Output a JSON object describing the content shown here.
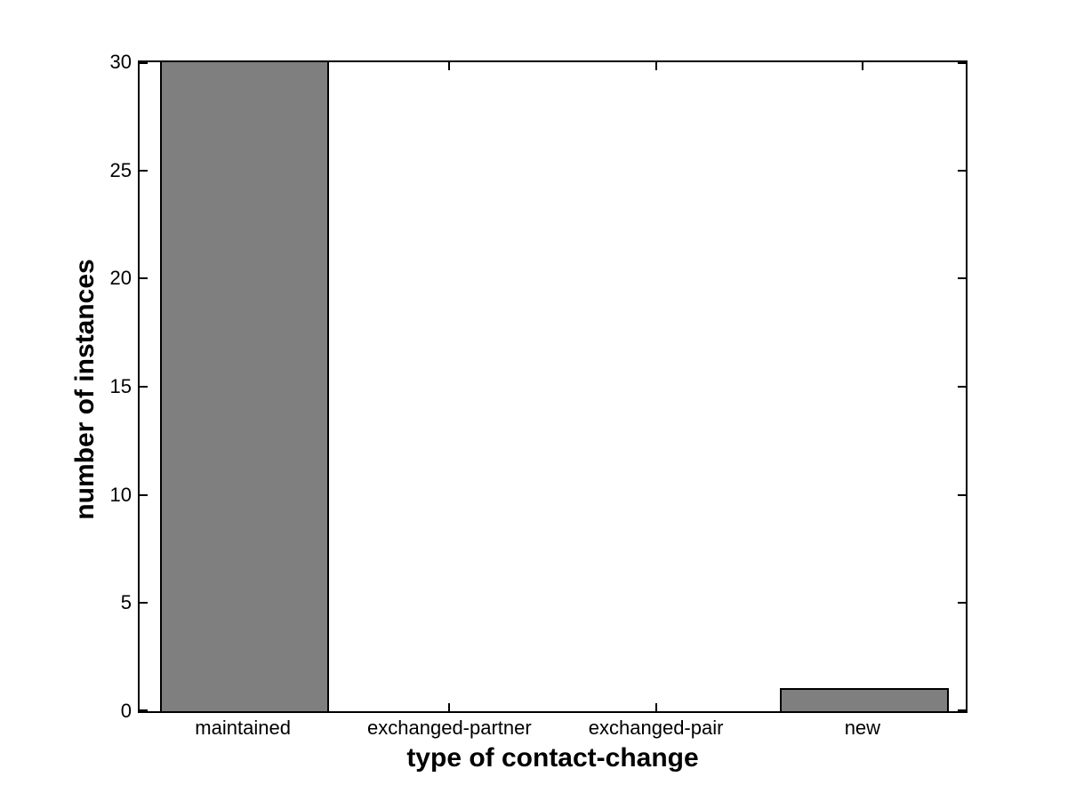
{
  "chart_data": {
    "type": "bar",
    "categories": [
      "maintained",
      "exchanged-partner",
      "exchanged-pair",
      "new"
    ],
    "values": [
      30,
      0,
      0,
      1
    ],
    "xlabel": "type of contact-change",
    "ylabel": "number of instances",
    "ylim": [
      0,
      30
    ],
    "yticks": [
      0,
      5,
      10,
      15,
      20,
      25,
      30
    ],
    "bar_color": "#7F7F7F",
    "bar_edge_color": "#000000",
    "axis_color": "#000000",
    "plot_background": "#FFFFFF",
    "figure_background": "#FFFFFF",
    "grid": false,
    "legend_position": "none",
    "bar_width_fraction": 0.8,
    "tick_direction": "in"
  }
}
